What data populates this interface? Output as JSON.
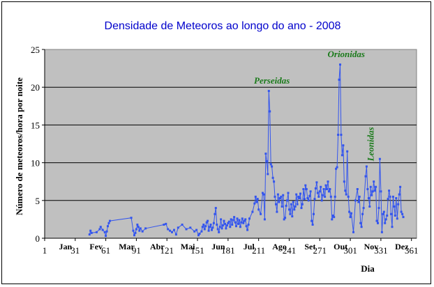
{
  "chart_data": {
    "type": "line",
    "title": "Densidade de Meteoros ao longo do ano - 2008",
    "xlabel": "Dia",
    "ylabel": "Número de meteoros/hora por noite",
    "xlim": [
      1,
      366
    ],
    "ylim": [
      0,
      25
    ],
    "grid": "horizontal",
    "background_color": "#c0c0c0",
    "series_color": "#3355ee",
    "annotation_color": "#1a7a1a",
    "x_tick_labels": [
      "1",
      "31",
      "61",
      "91",
      "121",
      "151",
      "181",
      "211",
      "241",
      "271",
      "301",
      "331",
      "361"
    ],
    "y_tick_labels": [
      "0",
      "5",
      "10",
      "15",
      "20",
      "25"
    ],
    "months": [
      {
        "label": "Jan",
        "x": 16
      },
      {
        "label": "Fev",
        "x": 46
      },
      {
        "label": "Mar",
        "x": 76
      },
      {
        "label": "Abr",
        "x": 106
      },
      {
        "label": "Mai",
        "x": 136
      },
      {
        "label": "Jun",
        "x": 166
      },
      {
        "label": "Jul",
        "x": 196
      },
      {
        "label": "Ago",
        "x": 226
      },
      {
        "label": "Set",
        "x": 256
      },
      {
        "label": "Out",
        "x": 286
      },
      {
        "label": "Nov",
        "x": 316
      },
      {
        "label": "Dez",
        "x": 346
      }
    ],
    "annotations": [
      {
        "text": "Perseidas",
        "x": 224,
        "y": 20.5,
        "rotate": false
      },
      {
        "text": "Orionidas",
        "x": 297,
        "y": 24.0,
        "rotate": false
      },
      {
        "text": "Leonidas",
        "x": 324,
        "y": 10.2,
        "rotate": true
      }
    ],
    "series": [
      {
        "points": [
          [
            45,
            0.5
          ],
          [
            46,
            1.0
          ],
          [
            47,
            0.7
          ],
          [
            52,
            0.8
          ],
          [
            55,
            1.2
          ],
          [
            56,
            1.5
          ],
          [
            58,
            1.1
          ],
          [
            60,
            0.8
          ],
          [
            61,
            0.3
          ],
          [
            62,
            0.9
          ],
          [
            63,
            1.6
          ],
          [
            64,
            2.0
          ],
          [
            65,
            2.3
          ],
          [
            86,
            2.7
          ],
          [
            88,
            1.0
          ],
          [
            89,
            0.4
          ],
          [
            90,
            0.7
          ],
          [
            91,
            1.2
          ],
          [
            92,
            1.8
          ],
          [
            93,
            1.5
          ],
          [
            94,
            1.0
          ],
          [
            95,
            1.3
          ],
          [
            97,
            0.9
          ],
          [
            100,
            1.3
          ],
          [
            118,
            1.8
          ],
          [
            120,
            1.9
          ],
          [
            122,
            1.2
          ],
          [
            124,
            1.0
          ],
          [
            126,
            0.8
          ],
          [
            128,
            1.1
          ],
          [
            130,
            0.5
          ],
          [
            132,
            1.4
          ],
          [
            136,
            1.8
          ],
          [
            140,
            1.2
          ],
          [
            144,
            1.4
          ],
          [
            148,
            0.9
          ],
          [
            150,
            1.1
          ],
          [
            152,
            0.4
          ],
          [
            153,
            0.6
          ],
          [
            155,
            0.9
          ],
          [
            156,
            1.5
          ],
          [
            157,
            1.8
          ],
          [
            158,
            1.2
          ],
          [
            159,
            1.6
          ],
          [
            160,
            2.1
          ],
          [
            161,
            2.3
          ],
          [
            162,
            1.0
          ],
          [
            163,
            1.5
          ],
          [
            164,
            1.8
          ],
          [
            165,
            1.1
          ],
          [
            166,
            1.4
          ],
          [
            167,
            2.0
          ],
          [
            168,
            3.2
          ],
          [
            169,
            4.0
          ],
          [
            170,
            1.8
          ],
          [
            171,
            1.2
          ],
          [
            172,
            0.8
          ],
          [
            173,
            1.5
          ],
          [
            174,
            2.5
          ],
          [
            175,
            1.3
          ],
          [
            176,
            1.7
          ],
          [
            177,
            2.3
          ],
          [
            178,
            1.9
          ],
          [
            179,
            1.3
          ],
          [
            180,
            1.7
          ],
          [
            181,
            2.0
          ],
          [
            182,
            2.2
          ],
          [
            183,
            1.5
          ],
          [
            184,
            2.5
          ],
          [
            185,
            1.8
          ],
          [
            186,
            2.4
          ],
          [
            187,
            2.8
          ],
          [
            188,
            2.1
          ],
          [
            189,
            1.6
          ],
          [
            190,
            2.6
          ],
          [
            191,
            1.9
          ],
          [
            192,
            2.4
          ],
          [
            193,
            1.5
          ],
          [
            194,
            2.1
          ],
          [
            195,
            2.6
          ],
          [
            196,
            2.0
          ],
          [
            197,
            2.3
          ],
          [
            198,
            2.5
          ],
          [
            199,
            1.6
          ],
          [
            200,
            1.1
          ],
          [
            201,
            1.8
          ],
          [
            202,
            2.6
          ],
          [
            205,
            3.5
          ],
          [
            207,
            4.6
          ],
          [
            208,
            5.5
          ],
          [
            209,
            4.8
          ],
          [
            210,
            5.2
          ],
          [
            211,
            3.8
          ],
          [
            213,
            3.2
          ],
          [
            215,
            6.0
          ],
          [
            216,
            5.8
          ],
          [
            217,
            2.5
          ],
          [
            218,
            11.2
          ],
          [
            219,
            10.2
          ],
          [
            220,
            8.5
          ],
          [
            221,
            19.5
          ],
          [
            222,
            16.8
          ],
          [
            223,
            9.8
          ],
          [
            224,
            9.5
          ],
          [
            225,
            8.0
          ],
          [
            226,
            7.5
          ],
          [
            227,
            5.5
          ],
          [
            228,
            4.5
          ],
          [
            229,
            3.5
          ],
          [
            230,
            5.8
          ],
          [
            231,
            4.8
          ],
          [
            232,
            5.3
          ],
          [
            233,
            5.5
          ],
          [
            234,
            4.2
          ],
          [
            235,
            5.7
          ],
          [
            236,
            2.5
          ],
          [
            237,
            2.7
          ],
          [
            238,
            4.3
          ],
          [
            239,
            5.0
          ],
          [
            240,
            6.0
          ],
          [
            241,
            3.8
          ],
          [
            242,
            3.2
          ],
          [
            243,
            4.5
          ],
          [
            244,
            2.9
          ],
          [
            245,
            4.8
          ],
          [
            246,
            3.8
          ],
          [
            247,
            4.2
          ],
          [
            248,
            5.8
          ],
          [
            249,
            4.5
          ],
          [
            250,
            5.5
          ],
          [
            251,
            5.3
          ],
          [
            252,
            5.9
          ],
          [
            253,
            4.0
          ],
          [
            254,
            4.5
          ],
          [
            255,
            6.5
          ],
          [
            256,
            5.2
          ],
          [
            257,
            7.0
          ],
          [
            258,
            6.5
          ],
          [
            259,
            5.3
          ],
          [
            260,
            5.0
          ],
          [
            261,
            5.6
          ],
          [
            262,
            6.2
          ],
          [
            263,
            2.3
          ],
          [
            264,
            1.8
          ],
          [
            265,
            3.2
          ],
          [
            266,
            5.2
          ],
          [
            267,
            6.6
          ],
          [
            268,
            7.4
          ],
          [
            269,
            6.0
          ],
          [
            270,
            5.5
          ],
          [
            271,
            6.2
          ],
          [
            272,
            6.8
          ],
          [
            273,
            5.0
          ],
          [
            274,
            5.7
          ],
          [
            275,
            6.5
          ],
          [
            276,
            5.5
          ],
          [
            277,
            7.0
          ],
          [
            278,
            6.5
          ],
          [
            279,
            7.5
          ],
          [
            280,
            6.2
          ],
          [
            281,
            6.5
          ],
          [
            282,
            5.5
          ],
          [
            283,
            2.5
          ],
          [
            284,
            3.0
          ],
          [
            285,
            2.8
          ],
          [
            286,
            5.5
          ],
          [
            287,
            9.2
          ],
          [
            288,
            9.4
          ],
          [
            289,
            13.7
          ],
          [
            290,
            21.0
          ],
          [
            291,
            23.0
          ],
          [
            292,
            13.7
          ],
          [
            293,
            11.0
          ],
          [
            294,
            12.3
          ],
          [
            295,
            7.5
          ],
          [
            296,
            6.3
          ],
          [
            297,
            5.8
          ],
          [
            298,
            11.5
          ],
          [
            299,
            5.5
          ],
          [
            300,
            3.5
          ],
          [
            301,
            2.8
          ],
          [
            302,
            3.3
          ],
          [
            304,
            0.8
          ],
          [
            306,
            5.0
          ],
          [
            308,
            6.5
          ],
          [
            309,
            4.8
          ],
          [
            310,
            5.5
          ],
          [
            311,
            2.0
          ],
          [
            312,
            1.5
          ],
          [
            313,
            3.2
          ],
          [
            314,
            4.0
          ],
          [
            316,
            8.2
          ],
          [
            317,
            9.5
          ],
          [
            318,
            6.5
          ],
          [
            319,
            5.3
          ],
          [
            320,
            4.2
          ],
          [
            321,
            6.8
          ],
          [
            322,
            5.7
          ],
          [
            323,
            6.2
          ],
          [
            324,
            7.5
          ],
          [
            325,
            6.3
          ],
          [
            326,
            6.8
          ],
          [
            327,
            2.3
          ],
          [
            328,
            2.0
          ],
          [
            329,
            4.0
          ],
          [
            330,
            10.5
          ],
          [
            331,
            6.2
          ],
          [
            332,
            0.8
          ],
          [
            333,
            3.2
          ],
          [
            334,
            3.5
          ],
          [
            335,
            2.0
          ],
          [
            336,
            2.5
          ],
          [
            337,
            3.0
          ],
          [
            338,
            5.2
          ],
          [
            339,
            6.3
          ],
          [
            340,
            5.5
          ],
          [
            341,
            3.2
          ],
          [
            342,
            1.5
          ],
          [
            343,
            5.5
          ],
          [
            344,
            4.2
          ],
          [
            345,
            3.0
          ],
          [
            346,
            5.3
          ],
          [
            347,
            2.6
          ],
          [
            348,
            4.5
          ],
          [
            349,
            5.8
          ],
          [
            350,
            6.8
          ],
          [
            351,
            3.5
          ],
          [
            352,
            3.2
          ],
          [
            353,
            2.8
          ]
        ]
      }
    ]
  }
}
